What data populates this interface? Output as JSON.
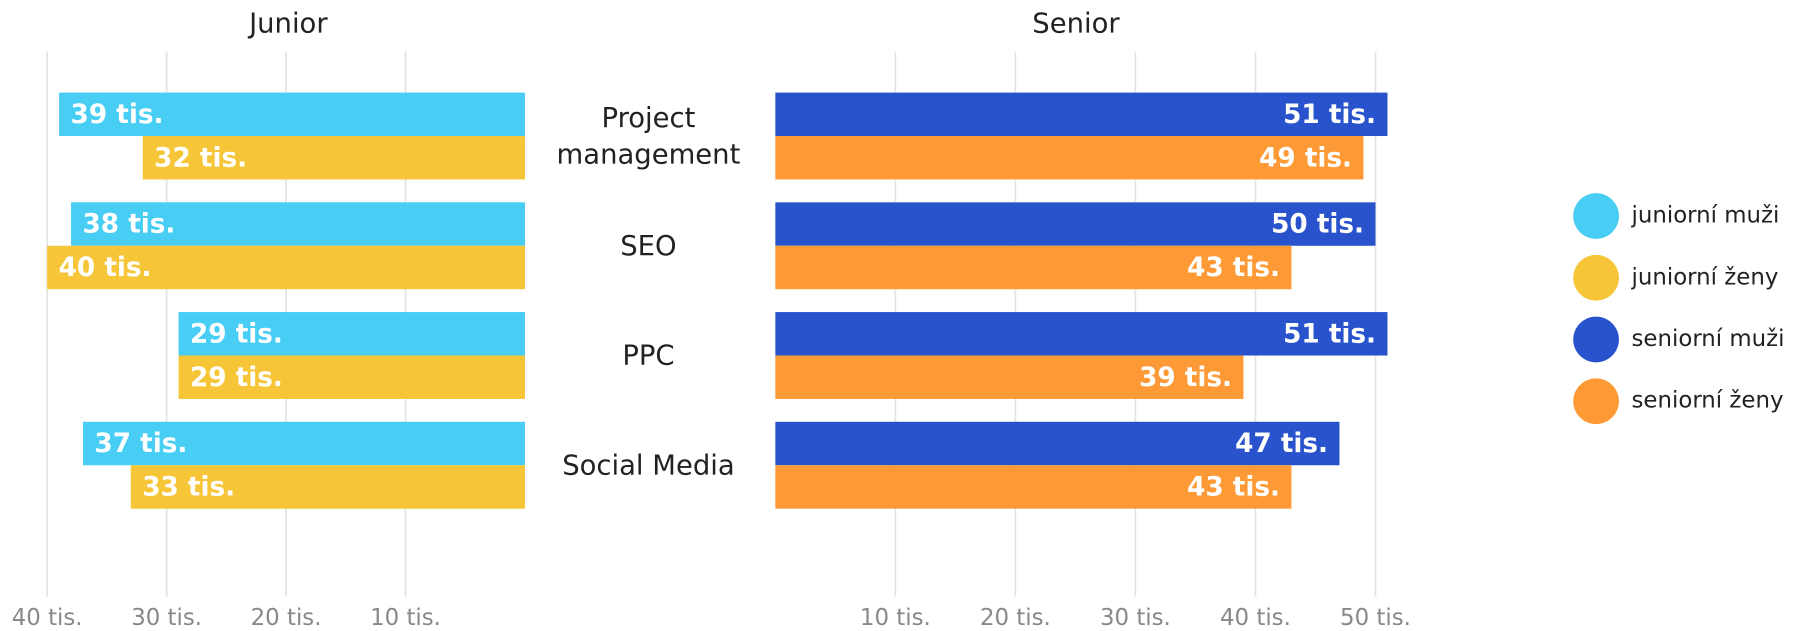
{
  "chart_data": {
    "type": "bar",
    "categories": [
      "Project management",
      "SEO",
      "PPC",
      "Social Media"
    ],
    "panels": [
      {
        "title": "Junior",
        "direction": "left",
        "xlim": [
          0,
          40
        ],
        "xticks": [
          {
            "value": 40,
            "label": "40 tis."
          },
          {
            "value": 30,
            "label": "30 tis."
          },
          {
            "value": 20,
            "label": "20 tis."
          },
          {
            "value": 10,
            "label": "10 tis."
          }
        ],
        "series": [
          {
            "name": "juniorní muži",
            "color": "#48cdf4",
            "values": [
              39,
              38,
              29,
              37
            ],
            "value_labels": [
              "39 tis.",
              "38 tis.",
              "29 tis.",
              "37 tis."
            ]
          },
          {
            "name": "juniorní ženy",
            "color": "#f7c538",
            "values": [
              32,
              40,
              29,
              33
            ],
            "value_labels": [
              "32 tis.",
              "40 tis.",
              "29 tis.",
              "33 tis."
            ]
          }
        ]
      },
      {
        "title": "Senior",
        "direction": "right",
        "xlim": [
          0,
          50
        ],
        "xticks": [
          {
            "value": 10,
            "label": "10 tis."
          },
          {
            "value": 20,
            "label": "20 tis."
          },
          {
            "value": 30,
            "label": "30 tis."
          },
          {
            "value": 40,
            "label": "40 tis."
          },
          {
            "value": 50,
            "label": "50 tis."
          }
        ],
        "series": [
          {
            "name": "seniorní muži",
            "color": "#2953cc",
            "values": [
              51,
              50,
              51,
              47
            ],
            "value_labels": [
              "51 tis.",
              "50 tis.",
              "51 tis.",
              "47 tis."
            ]
          },
          {
            "name": "seniorní ženy",
            "color": "#fd9a35",
            "values": [
              49,
              43,
              39,
              43
            ],
            "value_labels": [
              "49 tis.",
              "43 tis.",
              "39 tis.",
              "43 tis."
            ]
          }
        ]
      }
    ],
    "grid": true
  }
}
